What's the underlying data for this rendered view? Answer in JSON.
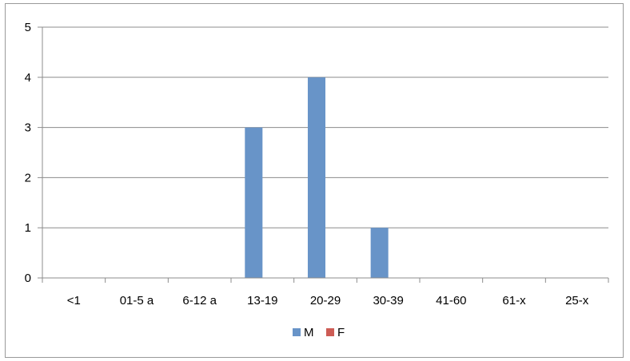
{
  "chart_data": {
    "type": "bar",
    "title": "",
    "xlabel": "",
    "ylabel": "",
    "categories": [
      "<1",
      "01-5 a",
      "6-12 a",
      "13-19",
      "20-29",
      "30-39",
      "41-60",
      "61-x",
      "25-x"
    ],
    "series": [
      {
        "name": "M",
        "color": "#6894c8",
        "values": [
          0,
          0,
          0,
          3,
          4,
          1,
          0,
          0,
          0
        ]
      },
      {
        "name": "F",
        "color": "#cd5c55",
        "values": [
          0,
          0,
          0,
          0,
          0,
          0,
          0,
          0,
          0
        ]
      }
    ],
    "yticks": [
      "0",
      "1",
      "2",
      "3",
      "4",
      "5"
    ],
    "ylim": [
      0,
      5
    ],
    "grid": true,
    "legend": "bottom"
  }
}
